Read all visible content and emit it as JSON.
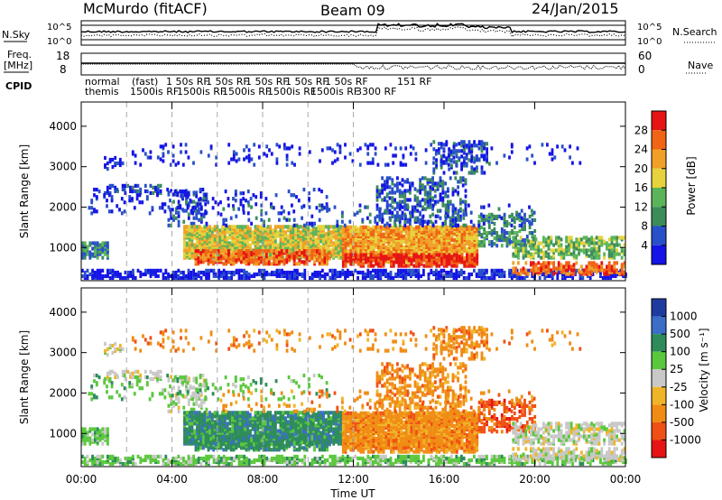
{
  "header": {
    "station": "McMurdo (fitACF)",
    "beam": "Beam 09",
    "date": "24/Jan/2015"
  },
  "top_panels": {
    "noise_left_label": "N.Sky",
    "noise_right_label": "N.Search",
    "noise_left_ticks": [
      "10^5",
      "10^0"
    ],
    "noise_right_ticks": [
      "10^5",
      "10^0"
    ],
    "freq_label_1": "Freq.",
    "freq_label_2": "[MHz]",
    "freq_ticks": [
      "18",
      "8"
    ],
    "nave_label": "Nave",
    "nave_ticks": [
      "60",
      "0"
    ],
    "cpid_label": "CPID",
    "cpid_row1": [
      "normal",
      "(fast)",
      "1 50s RF",
      "1 50s RF",
      "1 50s RF",
      "1 50s RF",
      "1 50s RF",
      "151 RF"
    ],
    "cpid_row2": [
      "themis",
      "1500is RF",
      "1500is RF",
      "1500is RF",
      "1500is RF",
      "1500is RF",
      "3300 RF"
    ]
  },
  "colors": {
    "power": [
      "#1414e6",
      "#2850c8",
      "#3c8c5a",
      "#5ab45a",
      "#e6d23c",
      "#f0a028",
      "#f06414",
      "#e61414"
    ],
    "velocity": [
      "#1e3ca0",
      "#3c6ec8",
      "#2d8c5a",
      "#5ac83c",
      "#c8c8c8",
      "#f0b428",
      "#f08c14",
      "#f05014",
      "#e61414"
    ]
  },
  "chart_data": [
    {
      "type": "heatmap",
      "name": "power",
      "ylabel": "Slant Range [km]",
      "xlabel": "",
      "x_ticks": [
        "00:00",
        "04:00",
        "08:00",
        "12:00",
        "16:00",
        "20:00",
        "00:00"
      ],
      "y_ticks": [
        1000,
        2000,
        3000,
        4000
      ],
      "ylim": [
        180,
        4600
      ],
      "xlim_hours": [
        0,
        24
      ],
      "colorbar_label": "Power [dB]",
      "colorbar_ticks": [
        "28",
        "24",
        "20",
        "16",
        "12",
        "8",
        "4"
      ],
      "colorbar_range": [
        0,
        32
      ],
      "cpid_change_hours": [
        2,
        4,
        6,
        8,
        10,
        12
      ]
    },
    {
      "type": "heatmap",
      "name": "velocity",
      "ylabel": "Slant Range [km]",
      "xlabel": "Time UT",
      "x_ticks": [
        "00:00",
        "04:00",
        "08:00",
        "12:00",
        "16:00",
        "20:00",
        "00:00"
      ],
      "y_ticks": [
        1000,
        2000,
        3000,
        4000
      ],
      "ylim": [
        180,
        4600
      ],
      "xlim_hours": [
        0,
        24
      ],
      "colorbar_label": "Velocity [m s⁻¹]",
      "colorbar_ticks": [
        "1000",
        "500",
        "100",
        "25",
        "-25",
        "-100",
        "-500",
        "-1000"
      ],
      "cpid_change_hours": [
        2,
        4,
        6,
        8,
        10,
        12
      ]
    }
  ]
}
